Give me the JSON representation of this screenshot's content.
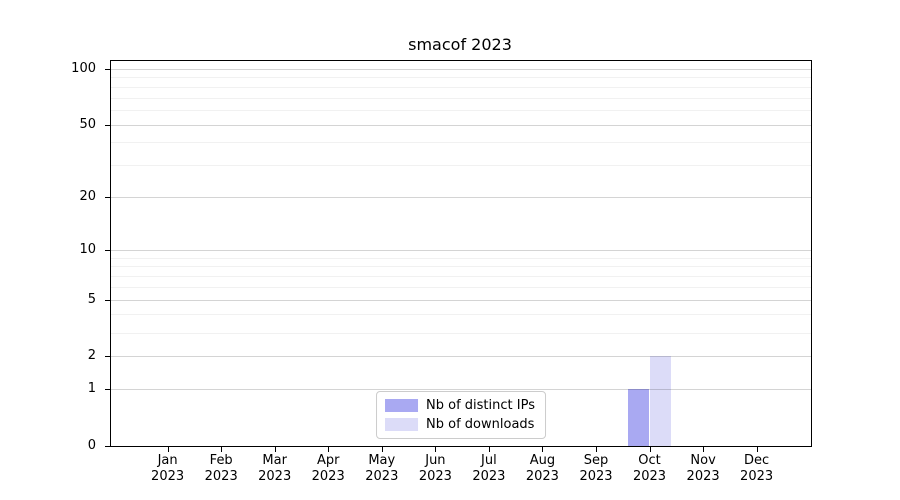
{
  "chart_data": {
    "type": "bar",
    "title": "smacof 2023",
    "categories": [
      "Jan",
      "Feb",
      "Mar",
      "Apr",
      "May",
      "Jun",
      "Jul",
      "Aug",
      "Sep",
      "Oct",
      "Nov",
      "Dec"
    ],
    "category_year": "2023",
    "series": [
      {
        "name": "Nb of distinct IPs",
        "color": "#a9a9f2",
        "values": [
          0,
          0,
          0,
          0,
          0,
          0,
          0,
          0,
          0,
          1,
          0,
          0
        ]
      },
      {
        "name": "Nb of downloads",
        "color": "#dcdcf8",
        "values": [
          0,
          0,
          0,
          0,
          0,
          0,
          0,
          0,
          0,
          2,
          0,
          0
        ]
      }
    ],
    "y_axis": {
      "scale": "log1p",
      "major_ticks": [
        0,
        1,
        2,
        5,
        10,
        20,
        50,
        100
      ],
      "minor_ticks": [
        3,
        4,
        6,
        7,
        8,
        9,
        30,
        40,
        60,
        70,
        80,
        90
      ],
      "max": 110
    },
    "xlabel": "",
    "ylabel": "",
    "grid": true,
    "legend_position": "lower center",
    "colors": {
      "axis": "#000000",
      "major_grid": "#d6d6d6",
      "minor_grid": "#f1f1f1",
      "background": "#ffffff"
    }
  }
}
